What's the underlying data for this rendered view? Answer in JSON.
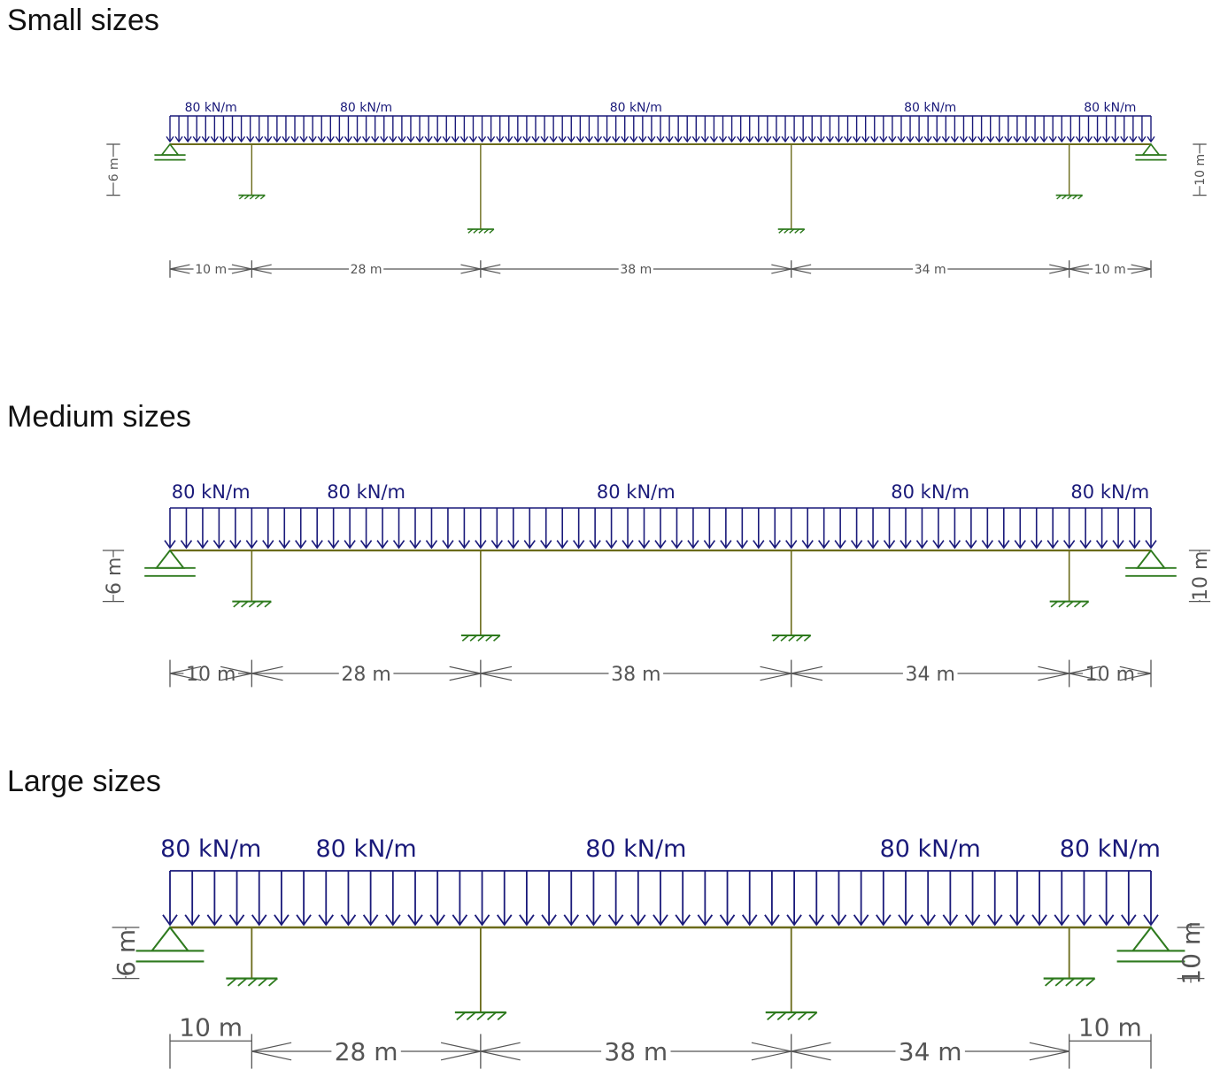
{
  "panels": [
    {
      "title": "Small sizes"
    },
    {
      "title": "Medium sizes"
    },
    {
      "title": "Large sizes"
    }
  ],
  "structure": {
    "spans_m": [
      10,
      28,
      38,
      34,
      10
    ],
    "span_labels": [
      "10 m",
      "28 m",
      "38 m",
      "34 m",
      "10 m"
    ],
    "load_labels": [
      "80 kN/m",
      "80 kN/m",
      "80 kN/m",
      "80 kN/m",
      "80 kN/m"
    ],
    "column_heights_m": [
      6,
      10,
      10,
      6
    ],
    "left_height_label": "6 m",
    "right_height_label": "10 m",
    "end_supports": [
      "pinned-roller",
      "pinned-roller"
    ],
    "column_bases": "fixed"
  },
  "colors": {
    "load": "#1a1a7a",
    "beam": "#6b6b1a",
    "support": "#2e7a1e",
    "dimension": "#555555"
  }
}
